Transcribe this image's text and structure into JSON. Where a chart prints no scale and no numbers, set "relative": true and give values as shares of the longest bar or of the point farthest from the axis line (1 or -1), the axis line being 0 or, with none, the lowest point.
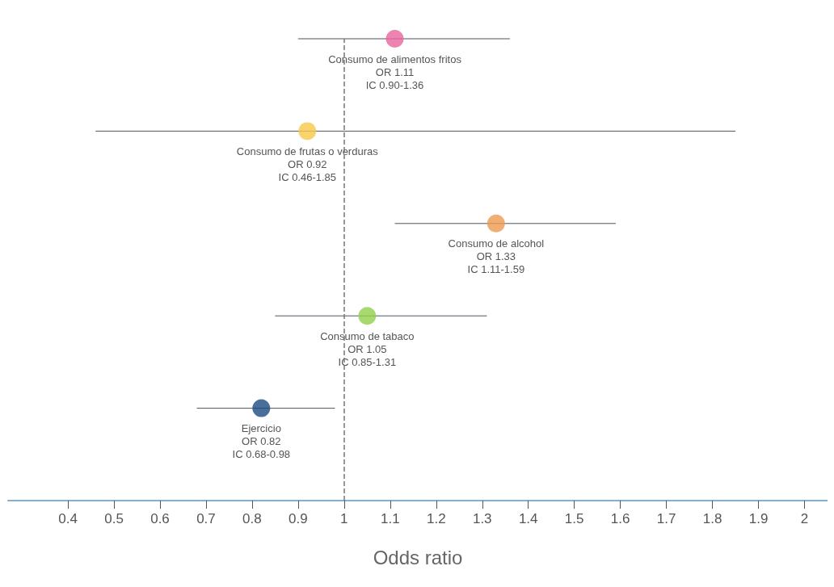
{
  "chart_data": {
    "type": "scatter",
    "xlabel": "Odds ratio",
    "relative": true,
    "x": [
      1.11,
      0.92,
      1.33,
      1.05,
      0.82
    ],
    "values": [
      1,
      0.8,
      0.6,
      0.4,
      0.2
    ],
    "xerrors": [
      [
        0.9,
        1.36
      ],
      [
        0.46,
        1.85
      ],
      [
        1.11,
        1.59
      ],
      [
        0.85,
        1.31
      ],
      [
        0.68,
        0.98
      ]
    ],
    "colors": [
      "#e8649c",
      "#f7c948",
      "#ee9a50",
      "#92cf4a",
      "#1b4a80"
    ],
    "annotations": [
      {
        "text": "Consumo de alimentos fritos\nOR 1.11\nIC 0.90-1.36",
        "x": 1.11,
        "y": 1
      },
      {
        "text": "Consumo de frutas o verduras\nOR 0.92\nIC 0.46-1.85",
        "x": 0.92,
        "y": 0.8
      },
      {
        "text": "Consumo de alcohol\nOR 1.33\nIC 1.11-1.59",
        "x": 1.33,
        "y": 0.6
      },
      {
        "text": "Consumo de tabaco\nOR 1.05\nIC 0.85-1.31",
        "x": 1.05,
        "y": 0.4
      },
      {
        "text": "Ejercicio\nOR 0.82\nIC 0.68-0.98",
        "x": 0.82,
        "y": 0.2
      }
    ],
    "xlim": [
      0.27,
      2.05
    ],
    "xticks": [
      0.4,
      0.5,
      0.6,
      0.7,
      0.8,
      0.9,
      1,
      1.1,
      1.2,
      1.3,
      1.4,
      1.5,
      1.6,
      1.7,
      1.8,
      1.9,
      2
    ],
    "ref_lines": [
      {
        "axis": "x",
        "value": 1,
        "color": "#777777",
        "line_style": "dashed"
      }
    ],
    "grid": false,
    "marker": "circle"
  }
}
